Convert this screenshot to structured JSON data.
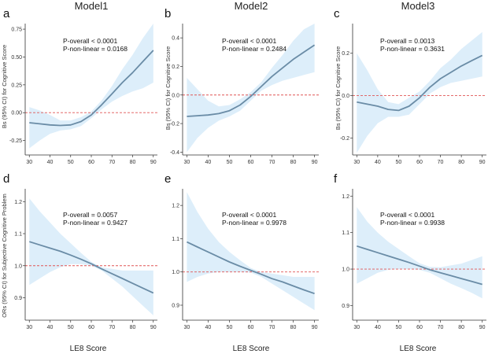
{
  "figure": {
    "column_titles": [
      "Model1",
      "Model2",
      "Model3"
    ],
    "x_axis_label": "LE8 Score",
    "y_axis_label_top": "Bs (95% CI) for Cognitive Score",
    "y_axis_label_bottom": "ORs (95% CI) for Subjective Cognitive Problem"
  },
  "chart_data": [
    {
      "type": "line",
      "panel": "a",
      "title": "Model1",
      "xlabel": "",
      "ylabel": "Bs (95% CI) for Cognitive Score",
      "xlim": [
        28,
        92
      ],
      "ylim": [
        -0.38,
        0.8
      ],
      "xticks": [
        30,
        40,
        50,
        60,
        70,
        80,
        90
      ],
      "yticks": [
        -0.25,
        0,
        0.25,
        0.5,
        0.75
      ],
      "ytick_labels": [
        "-0.25",
        "0.00",
        "0.25",
        "0.50",
        "0.75"
      ],
      "reference_y": 0,
      "x": [
        30,
        35,
        40,
        45,
        50,
        55,
        60,
        65,
        70,
        75,
        80,
        85,
        90
      ],
      "y": [
        -0.09,
        -0.1,
        -0.11,
        -0.115,
        -0.11,
        -0.08,
        -0.02,
        0.07,
        0.17,
        0.27,
        0.36,
        0.46,
        0.56
      ],
      "ci_lower": [
        -0.32,
        -0.25,
        -0.19,
        -0.16,
        -0.15,
        -0.12,
        -0.05,
        0.03,
        0.1,
        0.15,
        0.19,
        0.22,
        0.27
      ],
      "ci_upper": [
        0.05,
        0.02,
        -0.02,
        -0.07,
        -0.07,
        -0.04,
        0.01,
        0.11,
        0.24,
        0.39,
        0.52,
        0.67,
        0.8
      ],
      "annotations": [
        "P-overall < 0.0001",
        "P-non-linear = 0.0168"
      ]
    },
    {
      "type": "line",
      "panel": "b",
      "title": "Model2",
      "xlabel": "",
      "ylabel": "Bs (95% CI) for Cognitive Score",
      "xlim": [
        28,
        92
      ],
      "ylim": [
        -0.42,
        0.5
      ],
      "xticks": [
        30,
        40,
        50,
        60,
        70,
        80,
        90
      ],
      "yticks": [
        -0.4,
        -0.2,
        0,
        0.2,
        0.4
      ],
      "ytick_labels": [
        "-0.4",
        "-0.2",
        "0.0",
        "0.2",
        "0.4"
      ],
      "reference_y": 0,
      "x": [
        30,
        35,
        40,
        45,
        50,
        55,
        60,
        65,
        70,
        75,
        80,
        85,
        90
      ],
      "y": [
        -0.15,
        -0.145,
        -0.14,
        -0.13,
        -0.11,
        -0.07,
        -0.01,
        0.06,
        0.13,
        0.19,
        0.25,
        0.3,
        0.35
      ],
      "ci_lower": [
        -0.4,
        -0.3,
        -0.23,
        -0.18,
        -0.15,
        -0.11,
        -0.04,
        0.03,
        0.07,
        0.1,
        0.12,
        0.14,
        0.16
      ],
      "ci_upper": [
        0.12,
        0.04,
        -0.04,
        -0.08,
        -0.07,
        -0.03,
        0.02,
        0.09,
        0.19,
        0.28,
        0.38,
        0.46,
        0.5
      ],
      "annotations": [
        "P-overall < 0.0001",
        "P-non-linear = 0.2484"
      ]
    },
    {
      "type": "line",
      "panel": "c",
      "title": "Model3",
      "xlabel": "",
      "ylabel": "Bs (95% CI) for Cognitive Score",
      "xlim": [
        28,
        92
      ],
      "ylim": [
        -0.28,
        0.34
      ],
      "xticks": [
        30,
        40,
        50,
        60,
        70,
        80,
        90
      ],
      "yticks": [
        -0.2,
        0,
        0.2
      ],
      "ytick_labels": [
        "-0.2",
        "0.0",
        "0.2"
      ],
      "reference_y": 0,
      "x": [
        30,
        35,
        40,
        45,
        50,
        55,
        60,
        65,
        70,
        75,
        80,
        85,
        90
      ],
      "y": [
        -0.03,
        -0.04,
        -0.05,
        -0.065,
        -0.07,
        -0.05,
        -0.01,
        0.04,
        0.08,
        0.11,
        0.14,
        0.165,
        0.19
      ],
      "ci_lower": [
        -0.27,
        -0.19,
        -0.13,
        -0.1,
        -0.1,
        -0.09,
        -0.04,
        0.01,
        0.04,
        0.06,
        0.07,
        0.08,
        0.09
      ],
      "ci_upper": [
        0.2,
        0.12,
        0.03,
        -0.03,
        -0.04,
        -0.01,
        0.02,
        0.07,
        0.13,
        0.17,
        0.22,
        0.26,
        0.3
      ],
      "annotations": [
        "P-overall = 0.0013",
        "P-non-linear = 0.3631"
      ]
    },
    {
      "type": "line",
      "panel": "d",
      "title": "",
      "xlabel": "LE8 Score",
      "ylabel": "ORs (95% CI) for Subjective Cognitive Problem",
      "xlim": [
        28,
        92
      ],
      "ylim": [
        0.83,
        1.24
      ],
      "xticks": [
        30,
        40,
        50,
        60,
        70,
        80,
        90
      ],
      "yticks": [
        0.9,
        1.0,
        1.1,
        1.2
      ],
      "ytick_labels": [
        "0.9",
        "1.0",
        "1.1",
        "1.2"
      ],
      "reference_y": 1,
      "x": [
        30,
        35,
        40,
        45,
        50,
        55,
        60,
        65,
        70,
        75,
        80,
        85,
        90
      ],
      "y": [
        1.075,
        1.065,
        1.055,
        1.045,
        1.033,
        1.02,
        1.006,
        0.99,
        0.975,
        0.96,
        0.945,
        0.93,
        0.915
      ],
      "ci_lower": [
        0.94,
        0.96,
        0.98,
        0.995,
        1.005,
        1.005,
        1.0,
        0.985,
        0.96,
        0.935,
        0.905,
        0.875,
        0.845
      ],
      "ci_upper": [
        1.21,
        1.17,
        1.135,
        1.1,
        1.07,
        1.04,
        1.012,
        0.995,
        0.99,
        0.985,
        0.985,
        0.985,
        0.985
      ],
      "annotations": [
        "P-overall = 0.0057",
        "P-non-linear = 0.9427"
      ]
    },
    {
      "type": "line",
      "panel": "e",
      "title": "",
      "xlabel": "LE8 Score",
      "ylabel": "",
      "xlim": [
        28,
        92
      ],
      "ylim": [
        0.855,
        1.25
      ],
      "xticks": [
        30,
        40,
        50,
        60,
        70,
        80,
        90
      ],
      "yticks": [
        0.9,
        1.0,
        1.1,
        1.2
      ],
      "ytick_labels": [
        "0.9",
        "1.0",
        "1.1",
        "1.2"
      ],
      "reference_y": 1,
      "x": [
        30,
        35,
        40,
        45,
        50,
        55,
        60,
        65,
        70,
        75,
        80,
        85,
        90
      ],
      "y": [
        1.09,
        1.075,
        1.06,
        1.045,
        1.03,
        1.017,
        1.005,
        0.993,
        0.98,
        0.97,
        0.958,
        0.946,
        0.935
      ],
      "ci_lower": [
        0.97,
        0.985,
        0.995,
        1.0,
        1.0,
        1.0,
        0.998,
        0.985,
        0.965,
        0.945,
        0.925,
        0.905,
        0.885
      ],
      "ci_upper": [
        1.24,
        1.18,
        1.13,
        1.09,
        1.06,
        1.035,
        1.012,
        1.0,
        0.995,
        0.99,
        0.985,
        0.985,
        0.985
      ],
      "annotations": [
        "P-overall < 0.0001",
        "P-non-linear = 0.9978"
      ]
    },
    {
      "type": "line",
      "panel": "f",
      "title": "",
      "xlabel": "LE8 Score",
      "ylabel": "",
      "xlim": [
        28,
        92
      ],
      "ylim": [
        0.86,
        1.22
      ],
      "xticks": [
        30,
        40,
        50,
        60,
        70,
        80,
        90
      ],
      "yticks": [
        0.9,
        1.0,
        1.1,
        1.2
      ],
      "ytick_labels": [
        "0.9",
        "1.0",
        "1.1",
        "1.2"
      ],
      "reference_y": 1,
      "x": [
        30,
        35,
        40,
        45,
        50,
        55,
        60,
        65,
        70,
        75,
        80,
        85,
        90
      ],
      "y": [
        1.063,
        1.054,
        1.045,
        1.036,
        1.027,
        1.018,
        1.008,
        0.998,
        0.99,
        0.982,
        0.974,
        0.966,
        0.958
      ],
      "ci_lower": [
        0.96,
        0.975,
        0.99,
        0.998,
        1.0,
        1.0,
        0.998,
        0.99,
        0.975,
        0.96,
        0.948,
        0.935,
        0.92
      ],
      "ci_upper": [
        1.17,
        1.13,
        1.1,
        1.075,
        1.055,
        1.035,
        1.016,
        1.006,
        1.005,
        1.01,
        1.015,
        1.025,
        1.035
      ],
      "annotations": [
        "P-overall < 0.0001",
        "P-non-linear = 0.9938"
      ]
    }
  ],
  "colors": {
    "line": "#6a8ca6",
    "band": "#ddeefa",
    "reference": "#e05555",
    "axis": "#333333"
  }
}
